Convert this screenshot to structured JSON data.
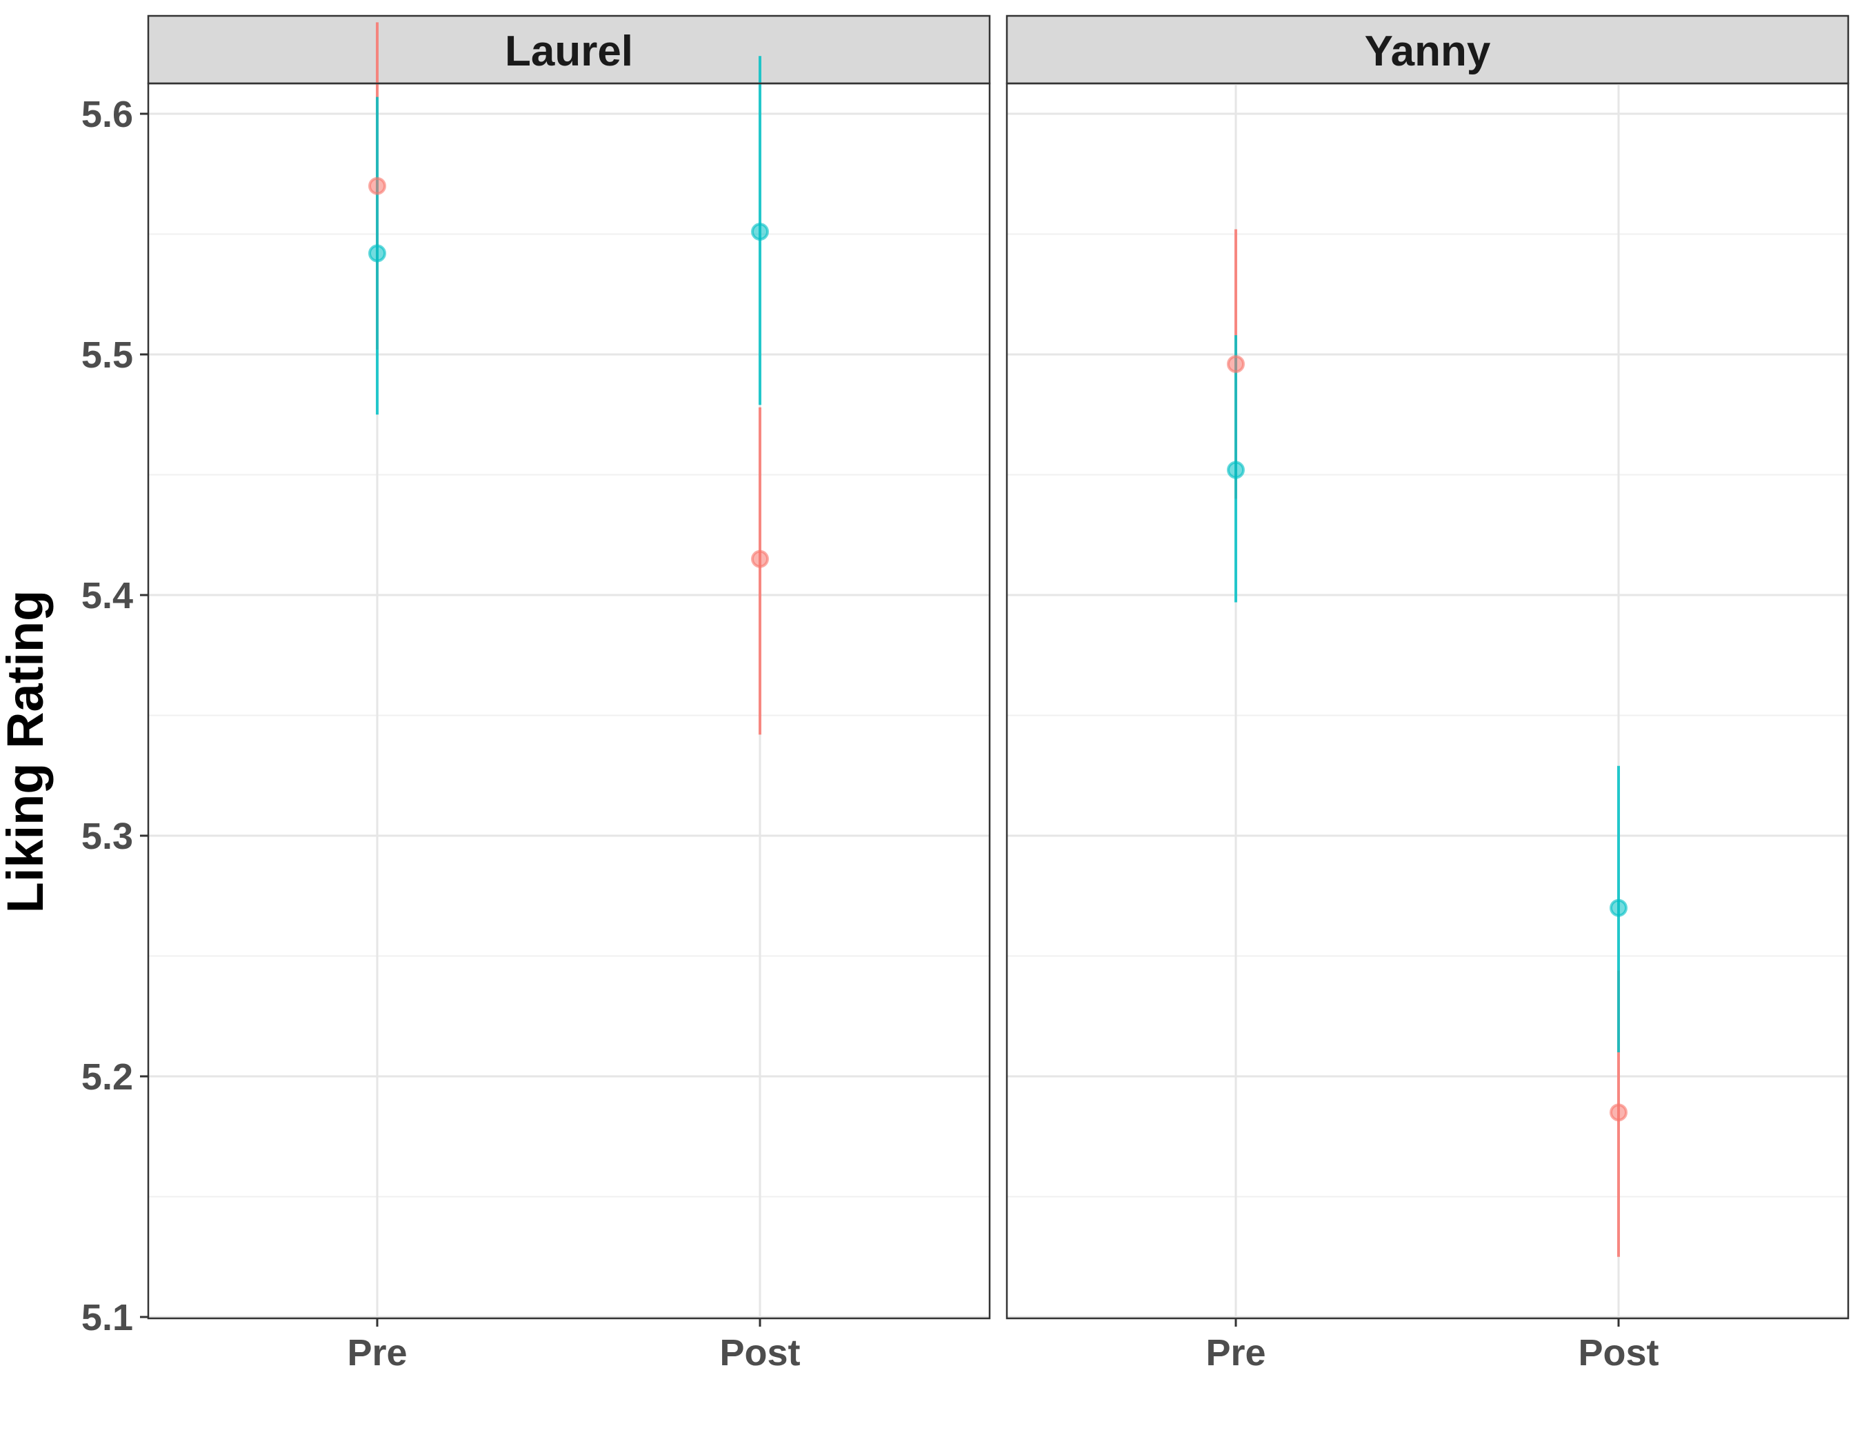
{
  "chart_data": {
    "type": "errorbar",
    "ylabel": "Liking Rating",
    "xlabel": "",
    "ylim": [
      5.1,
      5.66
    ],
    "y_ticks": [
      "5.1",
      "5.2",
      "5.3",
      "5.4",
      "5.5",
      "5.6"
    ],
    "categories": [
      "Pre",
      "Post"
    ],
    "legend": "none",
    "grid": true,
    "colors": {
      "red": "#F8766D",
      "teal": "#00BFC4"
    },
    "panels": [
      {
        "title": "Laurel",
        "series": [
          {
            "color": "red",
            "values": [
              5.57,
              5.415
            ],
            "lower": [
              5.502,
              5.342
            ],
            "upper": [
              5.638,
              5.478
            ]
          },
          {
            "color": "teal",
            "values": [
              5.542,
              5.551
            ],
            "lower": [
              5.475,
              5.479
            ],
            "upper": [
              5.607,
              5.624
            ]
          }
        ]
      },
      {
        "title": "Yanny",
        "series": [
          {
            "color": "red",
            "values": [
              5.496,
              5.185
            ],
            "lower": [
              5.44,
              5.125
            ],
            "upper": [
              5.552,
              5.244
            ]
          },
          {
            "color": "teal",
            "values": [
              5.452,
              5.27
            ],
            "lower": [
              5.397,
              5.21
            ],
            "upper": [
              5.508,
              5.329
            ]
          }
        ]
      }
    ]
  }
}
